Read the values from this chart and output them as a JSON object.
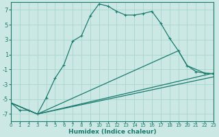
{
  "xlabel": "Humidex (Indice chaleur)",
  "bg_color": "#cce8e4",
  "grid_color": "#a8d4ce",
  "line_color": "#1a7a6e",
  "x_min": 0,
  "x_max": 23,
  "y_min": -8,
  "y_max": 8,
  "yticks": [
    -7,
    -5,
    -3,
    -1,
    1,
    3,
    5,
    7
  ],
  "xticks": [
    0,
    1,
    2,
    3,
    4,
    5,
    6,
    7,
    8,
    9,
    10,
    11,
    12,
    13,
    14,
    15,
    16,
    17,
    18,
    19,
    20,
    21,
    22,
    23
  ],
  "line1_x": [
    0,
    1,
    2,
    3,
    4,
    5,
    6,
    7,
    8,
    9,
    10,
    11,
    12,
    13,
    14,
    15,
    16,
    17,
    18,
    19,
    20,
    21,
    22,
    23
  ],
  "line1_y": [
    -5.5,
    -6.5,
    -6.5,
    -7.0,
    -4.8,
    -2.2,
    -0.4,
    2.8,
    3.5,
    6.2,
    7.8,
    7.5,
    6.8,
    6.3,
    6.3,
    6.5,
    6.8,
    5.2,
    3.2,
    1.5,
    -0.5,
    -1.3,
    -1.5,
    -1.6
  ],
  "line2_x": [
    0,
    3,
    23
  ],
  "line2_y": [
    -5.5,
    -7.0,
    -1.5
  ],
  "line3_x": [
    0,
    3,
    19,
    20,
    22,
    23
  ],
  "line3_y": [
    -5.5,
    -7.0,
    1.5,
    -0.5,
    -1.5,
    -1.6
  ],
  "line4_x": [
    0,
    3,
    23
  ],
  "line4_y": [
    -5.5,
    -7.0,
    -2.0
  ]
}
